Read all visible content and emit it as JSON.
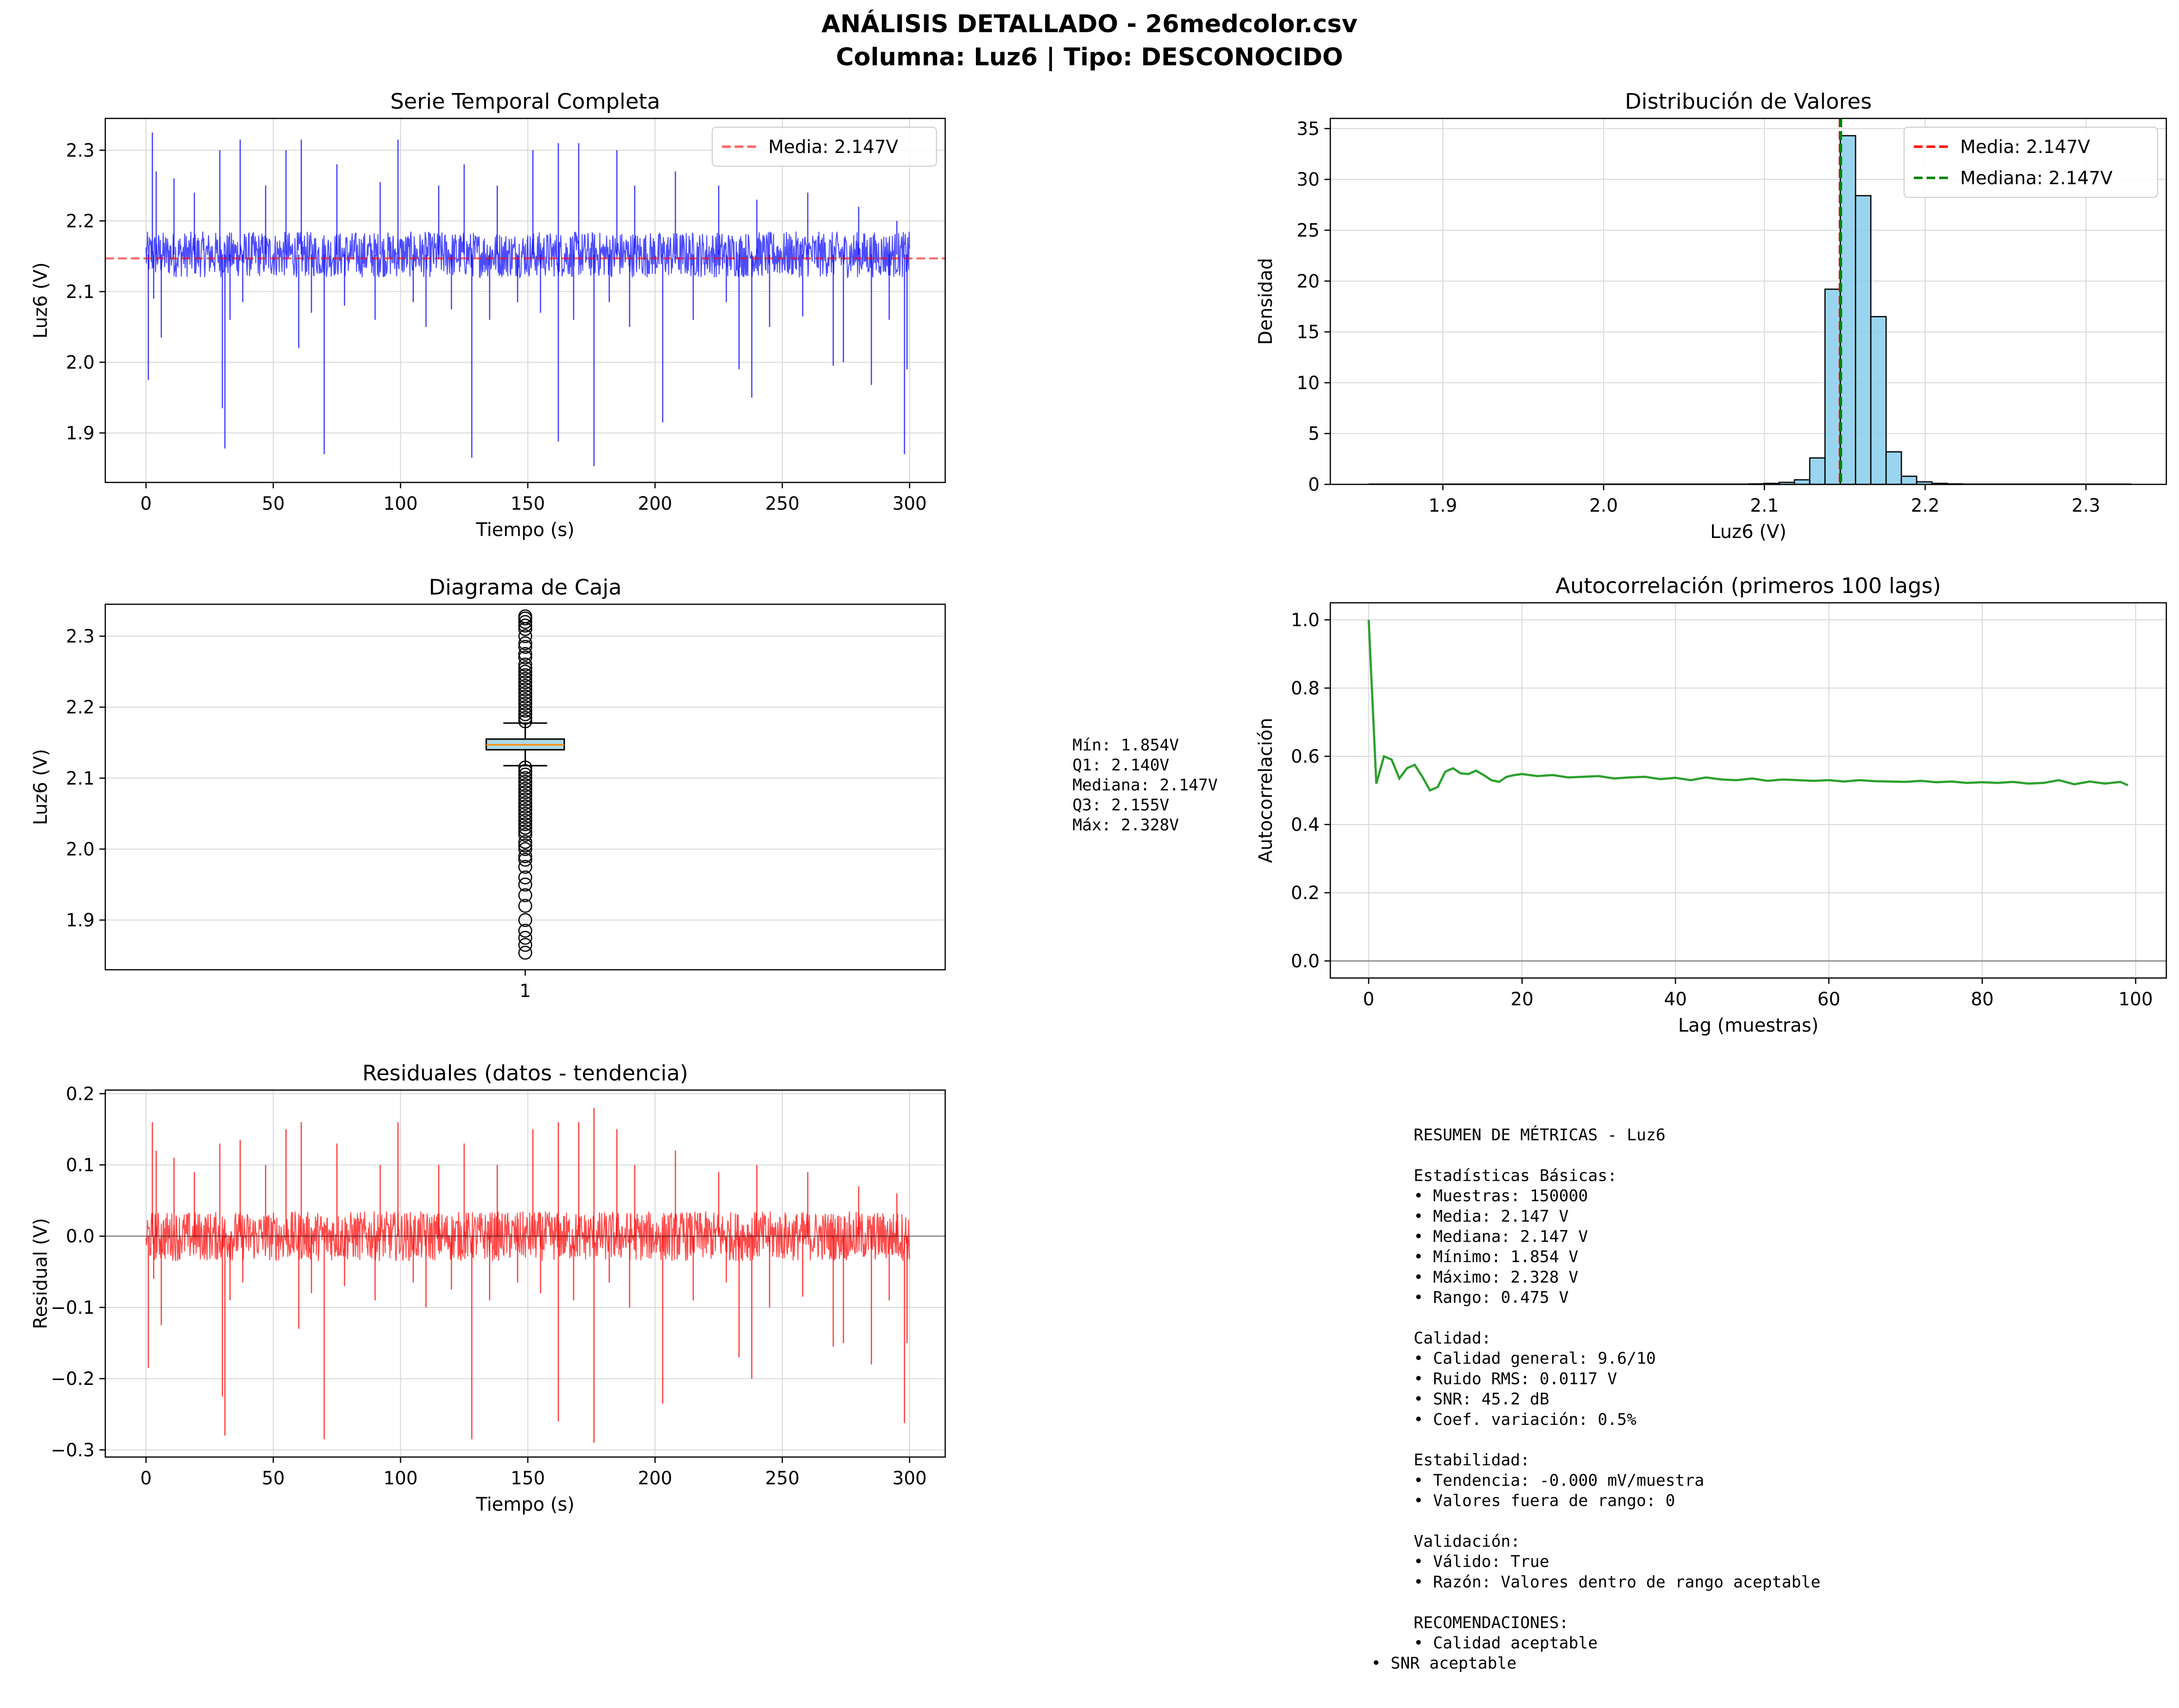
{
  "figure": {
    "title_line1": "ANÁLISIS DETALLADO - 26medcolor.csv",
    "title_line2": "Columna: Luz6 | Tipo: DESCONOCIDO"
  },
  "colors": {
    "timeseries": "#0000ff",
    "mean_line": "#ff0000",
    "median_line": "#008000",
    "histogram_fill": "#87ceeb",
    "box_fill": "#add8e6",
    "box_median": "#ff8c00",
    "autocorr": "#2ca02c",
    "residual": "#ff0000",
    "grid": "#d9d9d9"
  },
  "chart_data": [
    {
      "id": "timeseries",
      "type": "line",
      "title": "Serie Temporal Completa",
      "xlabel": "Tiempo (s)",
      "ylabel": "Luz6 (V)",
      "xlim": [
        -16,
        314
      ],
      "ylim": [
        1.83,
        2.345
      ],
      "xticks": [
        0,
        50,
        100,
        150,
        200,
        250,
        300
      ],
      "yticks": [
        1.9,
        2.0,
        2.1,
        2.2,
        2.3
      ],
      "ytick_labels": [
        "1.9",
        "2.0",
        "2.1",
        "2.2",
        "2.3"
      ],
      "noise_band": {
        "low": 2.12,
        "high": 2.185
      },
      "spikes_down": [
        [
          0.9,
          1.975
        ],
        [
          3,
          2.09
        ],
        [
          6,
          2.035
        ],
        [
          30,
          1.935
        ],
        [
          31,
          1.878
        ],
        [
          33,
          2.06
        ],
        [
          38,
          2.085
        ],
        [
          60,
          2.02
        ],
        [
          65,
          2.07
        ],
        [
          70,
          1.87
        ],
        [
          78,
          2.08
        ],
        [
          90,
          2.06
        ],
        [
          105,
          2.085
        ],
        [
          110,
          2.05
        ],
        [
          120,
          2.075
        ],
        [
          128,
          1.865
        ],
        [
          135,
          2.06
        ],
        [
          146,
          2.085
        ],
        [
          155,
          2.07
        ],
        [
          162,
          1.888
        ],
        [
          168,
          2.06
        ],
        [
          176,
          1.853
        ],
        [
          182,
          2.085
        ],
        [
          190,
          2.05
        ],
        [
          203,
          1.915
        ],
        [
          215,
          2.06
        ],
        [
          228,
          2.085
        ],
        [
          233,
          1.99
        ],
        [
          238,
          1.95
        ],
        [
          245,
          2.05
        ],
        [
          258,
          2.065
        ],
        [
          270,
          1.995
        ],
        [
          274,
          2.0
        ],
        [
          285,
          1.968
        ],
        [
          292,
          2.06
        ],
        [
          298,
          1.87
        ],
        [
          299,
          1.99
        ]
      ],
      "spikes_up": [
        [
          2.5,
          2.325
        ],
        [
          4,
          2.27
        ],
        [
          11,
          2.26
        ],
        [
          19,
          2.24
        ],
        [
          29,
          2.3
        ],
        [
          37,
          2.315
        ],
        [
          47,
          2.25
        ],
        [
          55,
          2.3
        ],
        [
          61,
          2.315
        ],
        [
          75,
          2.28
        ],
        [
          92,
          2.255
        ],
        [
          99,
          2.315
        ],
        [
          115,
          2.25
        ],
        [
          125,
          2.28
        ],
        [
          138,
          2.25
        ],
        [
          152,
          2.3
        ],
        [
          162,
          2.31
        ],
        [
          170,
          2.31
        ],
        [
          185,
          2.3
        ],
        [
          192,
          2.25
        ],
        [
          208,
          2.27
        ],
        [
          225,
          2.25
        ],
        [
          240,
          2.23
        ],
        [
          260,
          2.24
        ],
        [
          280,
          2.22
        ],
        [
          295,
          2.2
        ]
      ],
      "series": [
        {
          "name": "",
          "x_range": [
            0,
            300
          ],
          "points": 1500
        },
        {
          "name": "Media: 2.147V",
          "type": "hline",
          "y": 2.147,
          "style": "dashed"
        }
      ],
      "legend": "upper-right",
      "grid": true
    },
    {
      "id": "histogram",
      "type": "bar",
      "title": "Distribución de Valores",
      "xlabel": "Luz6 (V)",
      "ylabel": "Densidad",
      "xlim": [
        1.83,
        2.35
      ],
      "ylim": [
        0,
        36
      ],
      "xticks": [
        1.9,
        2.0,
        2.1,
        2.2,
        2.3
      ],
      "xtick_labels": [
        "1.9",
        "2.0",
        "2.1",
        "2.2",
        "2.3"
      ],
      "yticks": [
        0,
        5,
        10,
        15,
        20,
        25,
        30,
        35
      ],
      "bin_edges": [
        2.0902,
        2.0997,
        2.1092,
        2.1187,
        2.1282,
        2.1377,
        2.1472,
        2.1567,
        2.1662,
        2.1757,
        2.1852,
        2.1947,
        2.2042,
        2.2137,
        2.2232
      ],
      "values": [
        0.05,
        0.1,
        0.2,
        0.45,
        2.6,
        19.2,
        34.3,
        28.4,
        16.5,
        3.2,
        0.8,
        0.25,
        0.1,
        0.05
      ],
      "tail_low": [
        1.854,
        2.09
      ],
      "tail_high": [
        2.223,
        2.328
      ],
      "series": [
        {
          "name": "Media: 2.147V",
          "type": "vline",
          "x": 2.147,
          "style": "dashed"
        },
        {
          "name": "Mediana: 2.147V",
          "type": "vline",
          "x": 2.147,
          "style": "dashed"
        }
      ],
      "legend": "upper-right",
      "grid": true
    },
    {
      "id": "boxplot",
      "type": "box",
      "title": "Diagrama de Caja",
      "ylabel": "Luz6 (V)",
      "xticks": [
        "1"
      ],
      "ylim": [
        1.83,
        2.345
      ],
      "yticks": [
        1.9,
        2.0,
        2.1,
        2.2,
        2.3
      ],
      "ytick_labels": [
        "1.9",
        "2.0",
        "2.1",
        "2.2",
        "2.3"
      ],
      "min": 1.854,
      "q1": 2.14,
      "median": 2.147,
      "q3": 2.155,
      "max": 2.328,
      "whisker_low": 2.1175,
      "whisker_high": 2.1775,
      "outliers_high": [
        2.18,
        2.185,
        2.19,
        2.195,
        2.2,
        2.205,
        2.21,
        2.215,
        2.22,
        2.225,
        2.23,
        2.235,
        2.24,
        2.245,
        2.25,
        2.255,
        2.26,
        2.27,
        2.275,
        2.285,
        2.29,
        2.3,
        2.31,
        2.315,
        2.32,
        2.325,
        2.328
      ],
      "outliers_low": [
        2.115,
        2.11,
        2.105,
        2.1,
        2.095,
        2.09,
        2.085,
        2.08,
        2.075,
        2.07,
        2.065,
        2.06,
        2.055,
        2.05,
        2.045,
        2.04,
        2.035,
        2.03,
        2.025,
        2.02,
        2.01,
        2.005,
        2.0,
        1.99,
        1.985,
        1.975,
        1.96,
        1.95,
        1.935,
        1.92,
        1.9,
        1.885,
        1.875,
        1.865,
        1.854
      ],
      "stats_text": [
        "Mín: 1.854V",
        "Q1: 2.140V",
        "Mediana: 2.147V",
        "Q3: 2.155V",
        "Máx: 2.328V"
      ],
      "grid": true
    },
    {
      "id": "autocorr",
      "type": "line",
      "title": "Autocorrelación (primeros 100 lags)",
      "xlabel": "Lag (muestras)",
      "ylabel": "Autocorrelación",
      "xlim": [
        -5,
        104
      ],
      "ylim": [
        -0.05,
        1.05
      ],
      "xticks": [
        0,
        20,
        40,
        60,
        80,
        100
      ],
      "yticks": [
        0.0,
        0.2,
        0.4,
        0.6,
        0.8,
        1.0
      ],
      "ytick_labels": [
        "0.0",
        "0.2",
        "0.4",
        "0.6",
        "0.8",
        "1.0"
      ],
      "x": [
        0,
        1,
        2,
        3,
        4,
        5,
        6,
        7,
        8,
        9,
        10,
        11,
        12,
        13,
        14,
        15,
        16,
        17,
        18,
        19,
        20,
        22,
        24,
        26,
        28,
        30,
        32,
        34,
        36,
        38,
        40,
        42,
        44,
        46,
        48,
        50,
        52,
        54,
        56,
        58,
        60,
        62,
        64,
        66,
        68,
        70,
        72,
        74,
        76,
        78,
        80,
        82,
        84,
        86,
        88,
        90,
        92,
        94,
        96,
        98,
        99
      ],
      "values": [
        1.0,
        0.52,
        0.6,
        0.59,
        0.535,
        0.565,
        0.575,
        0.54,
        0.5,
        0.51,
        0.555,
        0.565,
        0.55,
        0.548,
        0.558,
        0.545,
        0.53,
        0.525,
        0.54,
        0.545,
        0.548,
        0.542,
        0.545,
        0.538,
        0.54,
        0.542,
        0.535,
        0.538,
        0.54,
        0.533,
        0.537,
        0.53,
        0.538,
        0.532,
        0.53,
        0.535,
        0.528,
        0.532,
        0.53,
        0.528,
        0.53,
        0.526,
        0.53,
        0.527,
        0.526,
        0.525,
        0.528,
        0.524,
        0.526,
        0.522,
        0.524,
        0.522,
        0.525,
        0.52,
        0.522,
        0.53,
        0.518,
        0.526,
        0.52,
        0.525,
        0.515
      ],
      "hline": 0.0,
      "grid": true
    },
    {
      "id": "residuals",
      "type": "line",
      "title": "Residuales (datos - tendencia)",
      "xlabel": "Tiempo (s)",
      "ylabel": "Residual (V)",
      "xlim": [
        -16,
        314
      ],
      "ylim": [
        -0.31,
        0.205
      ],
      "xticks": [
        0,
        50,
        100,
        150,
        200,
        250,
        300
      ],
      "yticks": [
        -0.3,
        -0.2,
        -0.1,
        0.0,
        0.1,
        0.2
      ],
      "ytick_labels": [
        "−0.3",
        "−0.2",
        "−0.1",
        "0.0",
        "0.1",
        "0.2"
      ],
      "noise_band": {
        "low": -0.035,
        "high": 0.035
      },
      "spikes_down": [
        [
          0.9,
          -0.185
        ],
        [
          3,
          -0.06
        ],
        [
          6,
          -0.125
        ],
        [
          30,
          -0.225
        ],
        [
          31,
          -0.28
        ],
        [
          33,
          -0.09
        ],
        [
          38,
          -0.065
        ],
        [
          60,
          -0.13
        ],
        [
          65,
          -0.08
        ],
        [
          70,
          -0.285
        ],
        [
          78,
          -0.07
        ],
        [
          90,
          -0.09
        ],
        [
          105,
          -0.065
        ],
        [
          110,
          -0.1
        ],
        [
          120,
          -0.075
        ],
        [
          128,
          -0.285
        ],
        [
          135,
          -0.09
        ],
        [
          146,
          -0.065
        ],
        [
          155,
          -0.08
        ],
        [
          162,
          -0.26
        ],
        [
          168,
          -0.09
        ],
        [
          176,
          -0.29
        ],
        [
          182,
          -0.065
        ],
        [
          190,
          -0.1
        ],
        [
          203,
          -0.235
        ],
        [
          215,
          -0.09
        ],
        [
          228,
          -0.065
        ],
        [
          233,
          -0.17
        ],
        [
          238,
          -0.2
        ],
        [
          245,
          -0.1
        ],
        [
          258,
          -0.085
        ],
        [
          270,
          -0.155
        ],
        [
          274,
          -0.15
        ],
        [
          285,
          -0.18
        ],
        [
          292,
          -0.09
        ],
        [
          298,
          -0.262
        ],
        [
          299,
          -0.15
        ]
      ],
      "spikes_up": [
        [
          2.5,
          0.16
        ],
        [
          4,
          0.12
        ],
        [
          11,
          0.11
        ],
        [
          19,
          0.09
        ],
        [
          29,
          0.13
        ],
        [
          37,
          0.135
        ],
        [
          47,
          0.1
        ],
        [
          55,
          0.15
        ],
        [
          61,
          0.16
        ],
        [
          75,
          0.13
        ],
        [
          92,
          0.1
        ],
        [
          99,
          0.16
        ],
        [
          115,
          0.1
        ],
        [
          125,
          0.13
        ],
        [
          138,
          0.1
        ],
        [
          152,
          0.15
        ],
        [
          162,
          0.16
        ],
        [
          170,
          0.16
        ],
        [
          176,
          0.18
        ],
        [
          185,
          0.15
        ],
        [
          192,
          0.1
        ],
        [
          208,
          0.12
        ],
        [
          225,
          0.09
        ],
        [
          240,
          0.1
        ],
        [
          260,
          0.09
        ],
        [
          280,
          0.07
        ],
        [
          295,
          0.06
        ]
      ],
      "hline": 0.0,
      "grid": true
    }
  ],
  "summary": {
    "lines": [
      "RESUMEN DE MÉTRICAS - Luz6",
      "",
      "Estadísticas Básicas:",
      "• Muestras: 150000",
      "• Media: 2.147 V",
      "• Mediana: 2.147 V",
      "• Mínimo: 1.854 V",
      "• Máximo: 2.328 V",
      "• Rango: 0.475 V",
      "",
      "Calidad:",
      "• Calidad general: 9.6/10",
      "• Ruido RMS: 0.0117 V",
      "• SNR: 45.2 dB",
      "• Coef. variación: 0.5%",
      "",
      "Estabilidad:",
      "• Tendencia: -0.000 mV/muestra",
      "• Valores fuera de rango: 0",
      "",
      "Validación:",
      "• Válido: True",
      "• Razón: Valores dentro de rango aceptable",
      "",
      "RECOMENDACIONES:",
      "• Calidad aceptable",
      "• SNR aceptable"
    ]
  }
}
